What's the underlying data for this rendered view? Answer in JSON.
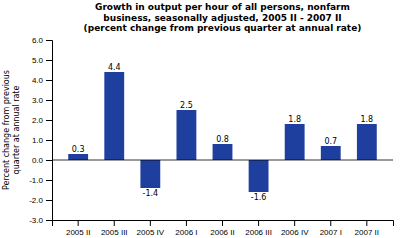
{
  "chart_data": {
    "type": "bar",
    "title": "Growth in output per hour of all persons, nonfarm\nbusiness, seasonally adjusted, 2005 II - 2007 II\n(percent change from previous quarter at annual rate)",
    "categories": [
      "2005 II",
      "2005 III",
      "2005 IV",
      "2006 I",
      "2006 II",
      "2006 III",
      "2006 IV",
      "2007 I",
      "2007 II"
    ],
    "values": [
      0.3,
      4.4,
      -1.4,
      2.5,
      0.8,
      -1.6,
      1.8,
      0.7,
      1.8
    ],
    "color": "#1e3f9e",
    "ylabel": "Percent change from previous\nquarter at annual rate",
    "ylim": [
      -3.0,
      6.0
    ],
    "yticks": [
      {
        "value": -3.0,
        "label": "-3.0"
      },
      {
        "value": -2.0,
        "label": "-2.0"
      },
      {
        "value": -1.0,
        "label": "-1.0"
      },
      {
        "value": 0.0,
        "label": "0.0"
      },
      {
        "value": 1.0,
        "label": "1.0"
      },
      {
        "value": 2.0,
        "label": "2.0"
      },
      {
        "value": 3.0,
        "label": "3.0"
      },
      {
        "value": 4.0,
        "label": "4.0"
      },
      {
        "value": 5.0,
        "label": "5.0"
      },
      {
        "value": 6.0,
        "label": "6.0"
      }
    ],
    "grid": false,
    "data_labels": true
  }
}
